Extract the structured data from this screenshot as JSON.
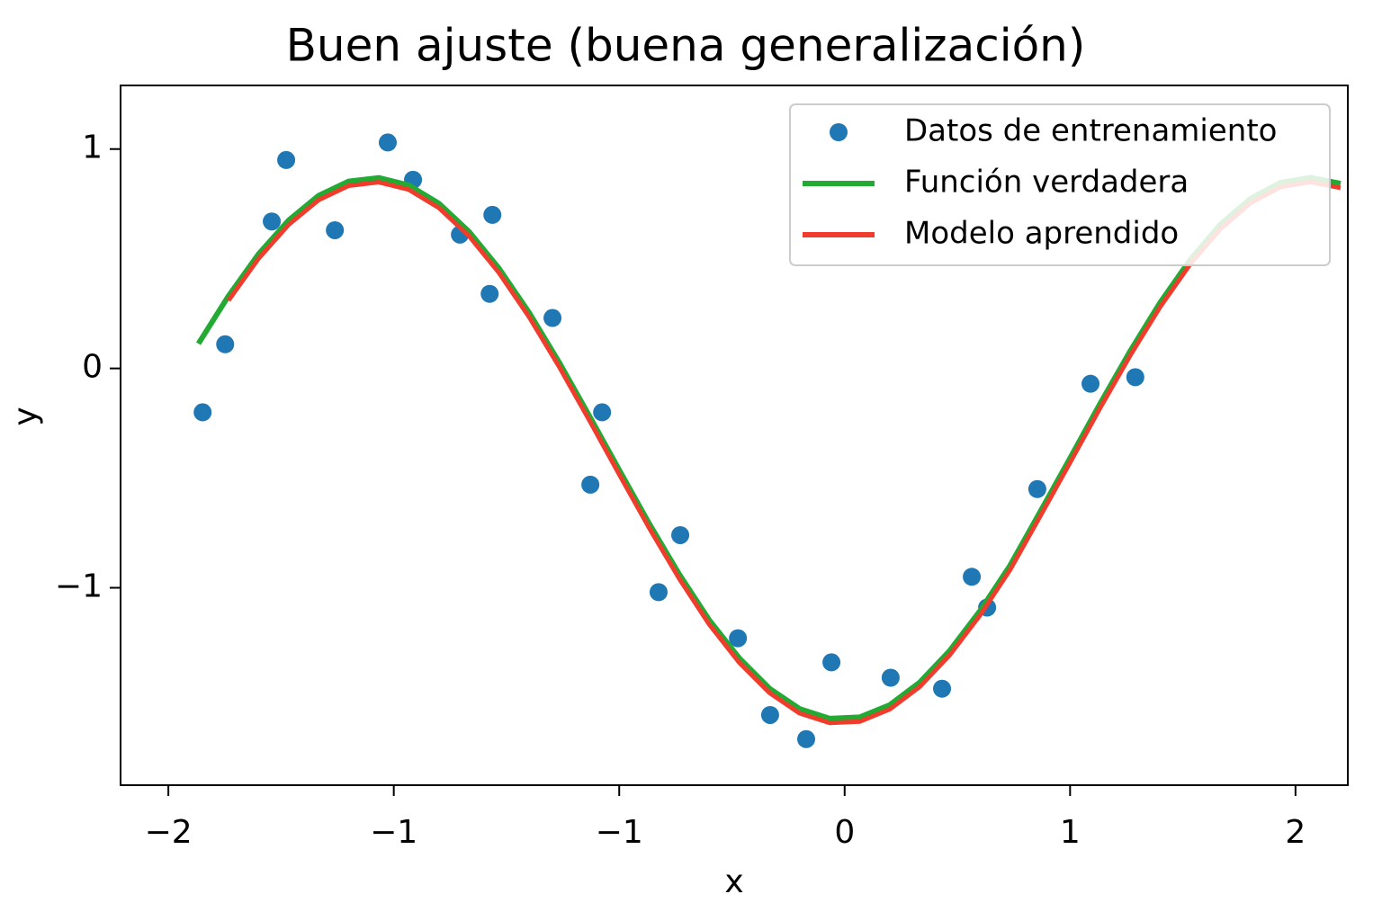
{
  "chart_data": {
    "type": "line",
    "title": "Buen ajuste (buena generalización)",
    "xlabel": "x",
    "ylabel": "y",
    "xlim": [
      -2.359,
      1.724
    ],
    "ylim": [
      -1.9,
      1.29
    ],
    "xticks": [
      {
        "value": -2.2,
        "label": "−2"
      },
      {
        "value": -1.45,
        "label": "−1"
      },
      {
        "value": -0.7,
        "label": "−1"
      },
      {
        "value": 0.05,
        "label": "0"
      },
      {
        "value": 0.8,
        "label": "1"
      },
      {
        "value": 1.55,
        "label": "2"
      }
    ],
    "yticks": [
      {
        "value": 1,
        "label": "1"
      },
      {
        "value": 0,
        "label": "0"
      },
      {
        "value": -1,
        "label": "−1"
      }
    ],
    "legend": "upper right",
    "series": [
      {
        "name": "Datos de entrenamiento",
        "style": "markers",
        "color": "#1f77b4",
        "x": [
          -2.086,
          -2.011,
          -1.856,
          -1.808,
          -1.646,
          -1.47,
          -1.386,
          -1.23,
          -1.131,
          -1.122,
          -0.922,
          -0.757,
          -0.796,
          -0.497,
          -0.569,
          -0.305,
          -0.198,
          -0.078,
          0.006,
          0.203,
          0.374,
          0.473,
          0.524,
          0.691,
          0.868,
          1.017
        ],
        "values": [
          -0.2,
          0.11,
          0.67,
          0.95,
          0.63,
          1.03,
          0.86,
          0.61,
          0.34,
          0.7,
          0.23,
          -0.2,
          -0.53,
          -0.76,
          -1.02,
          -1.23,
          -1.58,
          -1.69,
          -1.34,
          -1.41,
          -1.46,
          -0.95,
          -1.09,
          -0.55,
          -0.07,
          -0.04
        ]
      },
      {
        "name": "Función verdadera",
        "style": "line",
        "color": "#22aa33",
        "x": [
          -2.1,
          -2.0,
          -1.9,
          -1.8,
          -1.7,
          -1.6,
          -1.5,
          -1.4,
          -1.3,
          -1.2,
          -1.1,
          -1.0,
          -0.9,
          -0.8,
          -0.7,
          -0.6,
          -0.5,
          -0.4,
          -0.3,
          -0.2,
          -0.1,
          0.0,
          0.1,
          0.2,
          0.3,
          0.4,
          0.5,
          0.6,
          0.7,
          0.8,
          0.9,
          1.0,
          1.1,
          1.2,
          1.3,
          1.4,
          1.5,
          1.6,
          1.7
        ],
        "values": [
          0.113,
          0.33,
          0.521,
          0.675,
          0.788,
          0.853,
          0.869,
          0.835,
          0.752,
          0.624,
          0.456,
          0.255,
          0.028,
          -0.215,
          -0.463,
          -0.708,
          -0.939,
          -1.148,
          -1.322,
          -1.459,
          -1.552,
          -1.596,
          -1.59,
          -1.534,
          -1.431,
          -1.286,
          -1.106,
          -0.899,
          -0.655,
          -0.409,
          -0.16,
          0.079,
          0.301,
          0.496,
          0.656,
          0.774,
          0.847,
          0.87,
          0.843
        ]
      },
      {
        "name": "Modelo aprendido",
        "style": "line",
        "color": "#f03c2c",
        "x": [
          -2.0,
          -1.9,
          -1.8,
          -1.7,
          -1.6,
          -1.5,
          -1.4,
          -1.3,
          -1.2,
          -1.1,
          -1.0,
          -0.9,
          -0.8,
          -0.7,
          -0.6,
          -0.5,
          -0.4,
          -0.3,
          -0.2,
          -0.1,
          0.0,
          0.1,
          0.2,
          0.3,
          0.4,
          0.5,
          0.6,
          0.7,
          0.8,
          0.9,
          1.0,
          1.1,
          1.2,
          1.3,
          1.4,
          1.5,
          1.6,
          1.7
        ],
        "values": [
          0.31,
          0.501,
          0.655,
          0.768,
          0.833,
          0.849,
          0.815,
          0.732,
          0.604,
          0.436,
          0.235,
          0.008,
          -0.235,
          -0.483,
          -0.728,
          -0.959,
          -1.168,
          -1.342,
          -1.479,
          -1.572,
          -1.616,
          -1.61,
          -1.554,
          -1.451,
          -1.306,
          -1.126,
          -0.919,
          -0.675,
          -0.429,
          -0.18,
          0.059,
          0.281,
          0.476,
          0.636,
          0.754,
          0.827,
          0.85,
          0.823
        ]
      }
    ]
  }
}
